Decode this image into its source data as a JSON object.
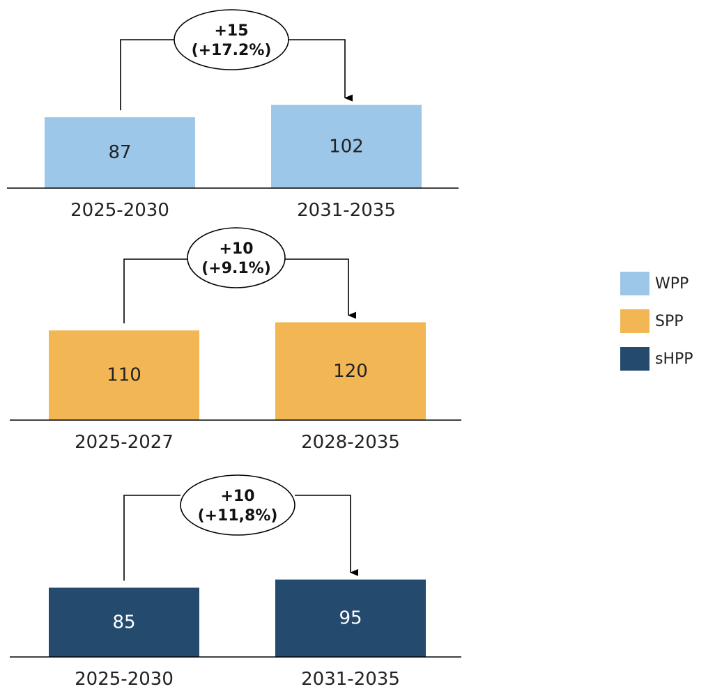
{
  "chart_data": [
    {
      "type": "bar",
      "series_name": "WPP",
      "color": "#9dc7e8",
      "categories": [
        "2025-2030",
        "2031-2035"
      ],
      "values": [
        87,
        102
      ],
      "value_labels": [
        "87",
        "102"
      ],
      "change_label": [
        "+15",
        "(+17.2%)"
      ]
    },
    {
      "type": "bar",
      "series_name": "SPP",
      "color": "#f2b754",
      "categories": [
        "2025-2027",
        "2028-2035"
      ],
      "values": [
        110,
        120
      ],
      "value_labels": [
        "110",
        "120"
      ],
      "change_label": [
        "+10",
        "(+9.1%)"
      ]
    },
    {
      "type": "bar",
      "series_name": "sHPP",
      "color": "#244b6e",
      "categories": [
        "2025-2030",
        "2031-2035"
      ],
      "values": [
        85,
        95
      ],
      "value_labels": [
        "85",
        "95"
      ],
      "change_label": [
        "+10",
        "(+11,8%)"
      ]
    }
  ],
  "legend": {
    "items": [
      {
        "label": "WPP",
        "color": "#9dc7e8"
      },
      {
        "label": "SPP",
        "color": "#f2b754"
      },
      {
        "label": "sHPP",
        "color": "#244b6e"
      }
    ]
  }
}
